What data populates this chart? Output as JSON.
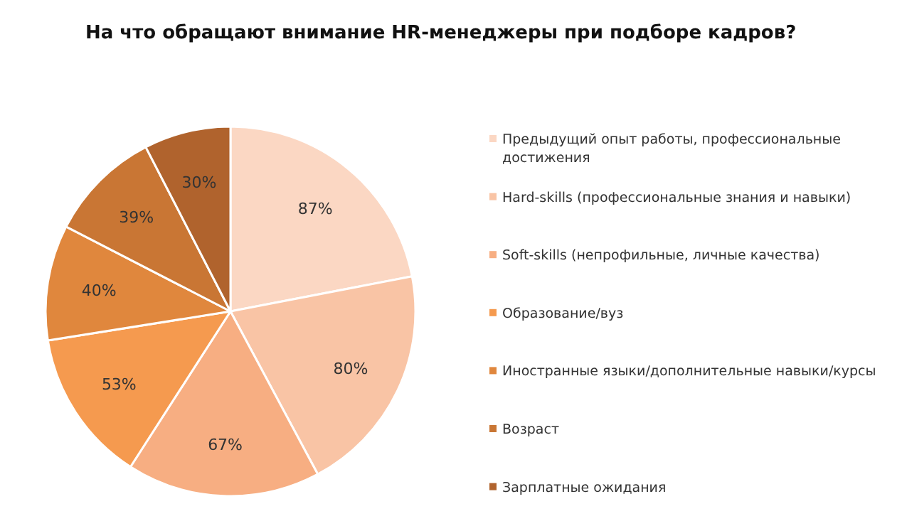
{
  "chart_data": {
    "type": "pie",
    "title": "На что обращают внимание HR-менеджеры при подборе кадров?",
    "categories": [
      "Предыдущий опыт работы, профессиональные достижения",
      "Hard-skills (профессиональные знания и навыки)",
      "Soft-skills (непрофильные, личные качества)",
      "Образование/вуз",
      "Иностранные языки/дополнительные навыки/курсы",
      "Возраст",
      "Зарплатные ожидания"
    ],
    "values": [
      87,
      80,
      67,
      53,
      40,
      39,
      30
    ],
    "value_labels": [
      "87%",
      "80%",
      "67%",
      "53%",
      "40%",
      "39%",
      "30%"
    ],
    "colors": [
      "#fbd7c3",
      "#f9c4a5",
      "#f7ae82",
      "#f59a4f",
      "#e0873d",
      "#c97634",
      "#b0632d"
    ],
    "legend": "right"
  }
}
